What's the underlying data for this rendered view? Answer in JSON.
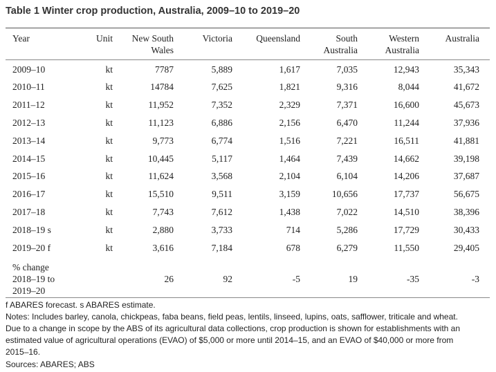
{
  "title": "Table 1 Winter crop production, Australia, 2009–10 to 2019–20",
  "table": {
    "columns": [
      [
        "Year"
      ],
      [
        "Unit"
      ],
      [
        "New South",
        "Wales"
      ],
      [
        "Victoria"
      ],
      [
        "Queensland"
      ],
      [
        "South",
        "Australia"
      ],
      [
        "Western",
        "Australia"
      ],
      [
        "Australia"
      ]
    ],
    "rows": [
      [
        "2009–10",
        "kt",
        "7787",
        "5,889",
        "1,617",
        "7,035",
        "12,943",
        "35,343"
      ],
      [
        "2010–11",
        "kt",
        "14784",
        "7,625",
        "1,821",
        "9,316",
        "8,044",
        "41,672"
      ],
      [
        "2011–12",
        "kt",
        "11,952",
        "7,352",
        "2,329",
        "7,371",
        "16,600",
        "45,673"
      ],
      [
        "2012–13",
        "kt",
        "11,123",
        "6,886",
        "2,156",
        "6,470",
        "11,244",
        "37,936"
      ],
      [
        "2013–14",
        "kt",
        "9,773",
        "6,774",
        "1,516",
        "7,221",
        "16,511",
        "41,881"
      ],
      [
        "2014–15",
        "kt",
        "10,445",
        "5,117",
        "1,464",
        "7,439",
        "14,662",
        "39,198"
      ],
      [
        "2015–16",
        "kt",
        "11,624",
        "3,568",
        "2,104",
        "6,104",
        "14,206",
        "37,687"
      ],
      [
        "2016–17",
        "kt",
        "15,510",
        "9,511",
        "3,159",
        "10,656",
        "17,737",
        "56,675"
      ],
      [
        "2017–18",
        "kt",
        "7,743",
        "7,612",
        "1,438",
        "7,022",
        "14,510",
        "38,396"
      ],
      [
        "2018–19 s",
        "kt",
        "2,880",
        "3,733",
        "714",
        "5,286",
        "17,729",
        "30,433"
      ],
      [
        "2019–20 f",
        "kt",
        "3,616",
        "7,184",
        "678",
        "6,279",
        "11,550",
        "29,405"
      ]
    ],
    "change_row": {
      "label": [
        "% change",
        "2018–19 to",
        "2019–20"
      ],
      "values": [
        "26",
        "92",
        "-5",
        "19",
        "-35",
        "-3"
      ]
    }
  },
  "footnotes": [
    "f ABARES forecast. s ABARES estimate.",
    "Notes: Includes barley, canola, chickpeas, faba beans, field peas, lentils, linseed, lupins, oats, safflower, triticale and wheat.",
    "Due to a change in scope by the ABS of its agricultural data collections, crop production is shown for establishments with an",
    "estimated value of agricultural operations (EVAO) of $5,000 or more until 2014–15, and an EVAO of $40,000 or more from",
    "2015–16.",
    "Sources: ABARES; ABS"
  ]
}
